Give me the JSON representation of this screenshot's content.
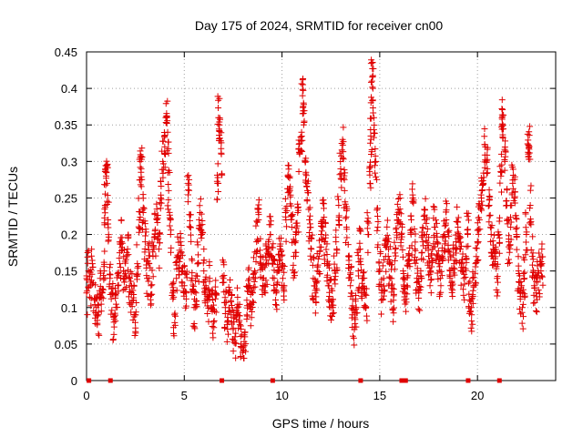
{
  "chart_data": {
    "type": "scatter",
    "title": "Day 175 of 2024, SRMTID for receiver cn00",
    "xlabel": "GPS time / hours",
    "ylabel": "SRMTID / TECUs",
    "xlim": [
      0,
      24
    ],
    "ylim": [
      0,
      0.45
    ],
    "x_ticks": [
      "0",
      "5",
      "10",
      "15",
      "20"
    ],
    "x_tick_values": [
      0,
      5,
      10,
      15,
      20
    ],
    "y_ticks": [
      "0",
      "0.05",
      "0.1",
      "0.15",
      "0.2",
      "0.25",
      "0.3",
      "0.35",
      "0.4",
      "0.45"
    ],
    "y_tick_values": [
      0,
      0.05,
      0.1,
      0.15,
      0.2,
      0.25,
      0.3,
      0.35,
      0.4,
      0.45
    ],
    "grid": true,
    "marker": "+",
    "color": "#e00000",
    "series": [
      {
        "name": "SRMTID",
        "points": [
          [
            0.0,
            0.12
          ],
          [
            0.1,
            0.15
          ],
          [
            0.2,
            0.13
          ],
          [
            0.3,
            0.16
          ],
          [
            0.4,
            0.11
          ],
          [
            0.5,
            0.1
          ],
          [
            0.6,
            0.09
          ],
          [
            0.7,
            0.14
          ],
          [
            0.8,
            0.12
          ],
          [
            0.9,
            0.15
          ],
          [
            0.95,
            0.24
          ],
          [
            1.0,
            0.28
          ],
          [
            1.05,
            0.27
          ],
          [
            1.1,
            0.22
          ],
          [
            1.2,
            0.14
          ],
          [
            1.3,
            0.12
          ],
          [
            1.4,
            0.08
          ],
          [
            1.5,
            0.1
          ],
          [
            1.6,
            0.13
          ],
          [
            1.7,
            0.16
          ],
          [
            1.8,
            0.19
          ],
          [
            1.9,
            0.15
          ],
          [
            2.0,
            0.14
          ],
          [
            2.1,
            0.18
          ],
          [
            2.2,
            0.13
          ],
          [
            2.3,
            0.12
          ],
          [
            2.4,
            0.11
          ],
          [
            2.5,
            0.09
          ],
          [
            2.6,
            0.16
          ],
          [
            2.7,
            0.22
          ],
          [
            2.75,
            0.3
          ],
          [
            2.8,
            0.29
          ],
          [
            2.9,
            0.23
          ],
          [
            3.0,
            0.19
          ],
          [
            3.1,
            0.14
          ],
          [
            3.2,
            0.16
          ],
          [
            3.3,
            0.13
          ],
          [
            3.4,
            0.17
          ],
          [
            3.5,
            0.2
          ],
          [
            3.6,
            0.22
          ],
          [
            3.7,
            0.18
          ],
          [
            3.8,
            0.25
          ],
          [
            3.9,
            0.3
          ],
          [
            4.0,
            0.32
          ],
          [
            4.1,
            0.36
          ],
          [
            4.15,
            0.34
          ],
          [
            4.2,
            0.26
          ],
          [
            4.3,
            0.2
          ],
          [
            4.4,
            0.12
          ],
          [
            4.5,
            0.09
          ],
          [
            4.6,
            0.14
          ],
          [
            4.7,
            0.17
          ],
          [
            4.8,
            0.19
          ],
          [
            4.9,
            0.15
          ],
          [
            5.0,
            0.13
          ],
          [
            5.1,
            0.12
          ],
          [
            5.2,
            0.27
          ],
          [
            5.3,
            0.21
          ],
          [
            5.4,
            0.14
          ],
          [
            5.5,
            0.1
          ],
          [
            5.6,
            0.12
          ],
          [
            5.7,
            0.16
          ],
          [
            5.8,
            0.23
          ],
          [
            5.9,
            0.2
          ],
          [
            6.0,
            0.15
          ],
          [
            6.1,
            0.13
          ],
          [
            6.2,
            0.11
          ],
          [
            6.3,
            0.14
          ],
          [
            6.4,
            0.1
          ],
          [
            6.5,
            0.08
          ],
          [
            6.6,
            0.12
          ],
          [
            6.7,
            0.27
          ],
          [
            6.75,
            0.36
          ],
          [
            6.8,
            0.35
          ],
          [
            6.9,
            0.31
          ],
          [
            7.0,
            0.14
          ],
          [
            7.1,
            0.1
          ],
          [
            7.2,
            0.08
          ],
          [
            7.3,
            0.12
          ],
          [
            7.4,
            0.09
          ],
          [
            7.5,
            0.07
          ],
          [
            7.6,
            0.06
          ],
          [
            7.7,
            0.1
          ],
          [
            7.8,
            0.08
          ],
          [
            7.9,
            0.05
          ],
          [
            8.0,
            0.04
          ],
          [
            8.1,
            0.06
          ],
          [
            8.2,
            0.11
          ],
          [
            8.3,
            0.13
          ],
          [
            8.4,
            0.1
          ],
          [
            8.5,
            0.12
          ],
          [
            8.6,
            0.15
          ],
          [
            8.7,
            0.19
          ],
          [
            8.8,
            0.22
          ],
          [
            8.9,
            0.17
          ],
          [
            9.0,
            0.14
          ],
          [
            9.1,
            0.13
          ],
          [
            9.2,
            0.16
          ],
          [
            9.3,
            0.19
          ],
          [
            9.4,
            0.2
          ],
          [
            9.5,
            0.17
          ],
          [
            9.6,
            0.14
          ],
          [
            9.7,
            0.12
          ],
          [
            9.8,
            0.15
          ],
          [
            9.9,
            0.18
          ],
          [
            10.0,
            0.16
          ],
          [
            10.1,
            0.13
          ],
          [
            10.2,
            0.22
          ],
          [
            10.3,
            0.28
          ],
          [
            10.4,
            0.26
          ],
          [
            10.5,
            0.21
          ],
          [
            10.6,
            0.17
          ],
          [
            10.7,
            0.2
          ],
          [
            10.8,
            0.23
          ],
          [
            10.9,
            0.31
          ],
          [
            11.0,
            0.34
          ],
          [
            11.05,
            0.39
          ],
          [
            11.1,
            0.38
          ],
          [
            11.2,
            0.3
          ],
          [
            11.3,
            0.26
          ],
          [
            11.4,
            0.22
          ],
          [
            11.5,
            0.18
          ],
          [
            11.6,
            0.14
          ],
          [
            11.7,
            0.12
          ],
          [
            11.8,
            0.15
          ],
          [
            11.9,
            0.17
          ],
          [
            12.0,
            0.2
          ],
          [
            12.1,
            0.22
          ],
          [
            12.2,
            0.19
          ],
          [
            12.3,
            0.16
          ],
          [
            12.4,
            0.13
          ],
          [
            12.5,
            0.11
          ],
          [
            12.6,
            0.1
          ],
          [
            12.7,
            0.15
          ],
          [
            12.8,
            0.18
          ],
          [
            12.9,
            0.24
          ],
          [
            13.0,
            0.29
          ],
          [
            13.1,
            0.33
          ],
          [
            13.2,
            0.26
          ],
          [
            13.3,
            0.21
          ],
          [
            13.4,
            0.17
          ],
          [
            13.5,
            0.13
          ],
          [
            13.6,
            0.09
          ],
          [
            13.7,
            0.07
          ],
          [
            13.8,
            0.1
          ],
          [
            13.9,
            0.15
          ],
          [
            14.0,
            0.18
          ],
          [
            14.1,
            0.14
          ],
          [
            14.2,
            0.12
          ],
          [
            14.3,
            0.1
          ],
          [
            14.4,
            0.2
          ],
          [
            14.5,
            0.27
          ],
          [
            14.55,
            0.33
          ],
          [
            14.6,
            0.41
          ],
          [
            14.65,
            0.4
          ],
          [
            14.7,
            0.36
          ],
          [
            14.8,
            0.3
          ],
          [
            14.9,
            0.21
          ],
          [
            15.0,
            0.15
          ],
          [
            15.1,
            0.12
          ],
          [
            15.2,
            0.14
          ],
          [
            15.3,
            0.17
          ],
          [
            15.4,
            0.19
          ],
          [
            15.5,
            0.16
          ],
          [
            15.6,
            0.13
          ],
          [
            15.7,
            0.11
          ],
          [
            15.8,
            0.18
          ],
          [
            15.9,
            0.22
          ],
          [
            16.0,
            0.23
          ],
          [
            16.1,
            0.2
          ],
          [
            16.2,
            0.15
          ],
          [
            16.3,
            0.12
          ],
          [
            16.4,
            0.13
          ],
          [
            16.5,
            0.16
          ],
          [
            16.6,
            0.2
          ],
          [
            16.7,
            0.25
          ],
          [
            16.8,
            0.18
          ],
          [
            16.9,
            0.14
          ],
          [
            17.0,
            0.12
          ],
          [
            17.1,
            0.15
          ],
          [
            17.2,
            0.19
          ],
          [
            17.3,
            0.22
          ],
          [
            17.4,
            0.2
          ],
          [
            17.5,
            0.17
          ],
          [
            17.6,
            0.15
          ],
          [
            17.7,
            0.18
          ],
          [
            17.8,
            0.21
          ],
          [
            17.9,
            0.19
          ],
          [
            18.0,
            0.16
          ],
          [
            18.1,
            0.14
          ],
          [
            18.2,
            0.17
          ],
          [
            18.3,
            0.2
          ],
          [
            18.4,
            0.22
          ],
          [
            18.5,
            0.18
          ],
          [
            18.6,
            0.15
          ],
          [
            18.7,
            0.13
          ],
          [
            18.8,
            0.16
          ],
          [
            18.9,
            0.19
          ],
          [
            19.0,
            0.21
          ],
          [
            19.1,
            0.18
          ],
          [
            19.2,
            0.16
          ],
          [
            19.3,
            0.14
          ],
          [
            19.4,
            0.17
          ],
          [
            19.5,
            0.2
          ],
          [
            19.6,
            0.11
          ],
          [
            19.7,
            0.09
          ],
          [
            19.8,
            0.13
          ],
          [
            19.9,
            0.16
          ],
          [
            20.0,
            0.19
          ],
          [
            20.1,
            0.22
          ],
          [
            20.2,
            0.25
          ],
          [
            20.3,
            0.27
          ],
          [
            20.4,
            0.32
          ],
          [
            20.5,
            0.29
          ],
          [
            20.6,
            0.24
          ],
          [
            20.7,
            0.2
          ],
          [
            20.8,
            0.18
          ],
          [
            20.9,
            0.16
          ],
          [
            21.0,
            0.14
          ],
          [
            21.1,
            0.2
          ],
          [
            21.2,
            0.28
          ],
          [
            21.25,
            0.36
          ],
          [
            21.3,
            0.35
          ],
          [
            21.4,
            0.3
          ],
          [
            21.5,
            0.24
          ],
          [
            21.6,
            0.19
          ],
          [
            21.7,
            0.21
          ],
          [
            21.8,
            0.27
          ],
          [
            21.9,
            0.25
          ],
          [
            22.0,
            0.2
          ],
          [
            22.1,
            0.15
          ],
          [
            22.2,
            0.12
          ],
          [
            22.3,
            0.1
          ],
          [
            22.4,
            0.14
          ],
          [
            22.5,
            0.2
          ],
          [
            22.6,
            0.31
          ],
          [
            22.65,
            0.32
          ],
          [
            22.7,
            0.24
          ],
          [
            22.8,
            0.17
          ],
          [
            22.9,
            0.13
          ],
          [
            23.0,
            0.12
          ],
          [
            23.1,
            0.15
          ],
          [
            23.2,
            0.14
          ],
          [
            23.3,
            0.16
          ]
        ]
      }
    ],
    "zero_points": [
      0.1,
      1.2,
      6.9,
      9.5,
      14.0,
      16.1,
      16.3,
      19.5,
      21.1
    ]
  }
}
